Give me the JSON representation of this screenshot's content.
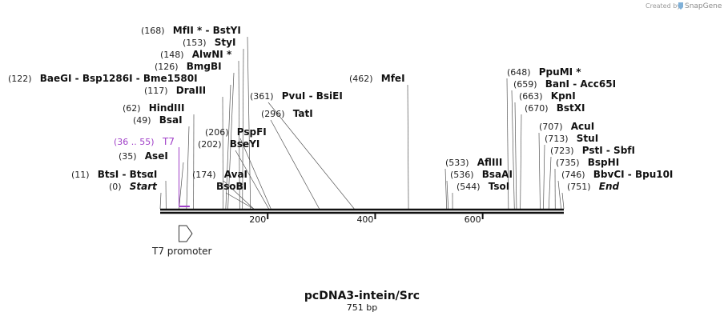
{
  "credit": {
    "prefix": "Created by",
    "brand": "SnapGene"
  },
  "title": "pcDNA3-intein/Src",
  "subtitle": "751 bp",
  "sequence": {
    "length": 751
  },
  "ticks": [
    200,
    400,
    600
  ],
  "feature": {
    "name": "T7 promoter",
    "start": 36,
    "end": 55
  },
  "highlight": {
    "range": "(36 .. 55)",
    "name": "T7",
    "color": "#a040c8"
  },
  "sites": [
    {
      "num": "(168)",
      "pos": 168,
      "parts": [
        "MfII",
        "*",
        " - ",
        "BstYI"
      ]
    },
    {
      "num": "(153)",
      "pos": 153,
      "parts": [
        "StyI"
      ]
    },
    {
      "num": "(148)",
      "pos": 148,
      "parts": [
        "AlwNI",
        "*"
      ]
    },
    {
      "num": "(126)",
      "pos": 126,
      "parts": [
        "BmgBI"
      ]
    },
    {
      "num": "(122)",
      "pos": 122,
      "parts": [
        "BaeGI",
        " - ",
        "Bsp1286I",
        " - ",
        "Bme1580I"
      ]
    },
    {
      "num": "(117)",
      "pos": 117,
      "parts": [
        "DraIII"
      ]
    },
    {
      "num": "(62)",
      "pos": 62,
      "parts": [
        "HindIII"
      ]
    },
    {
      "num": "(49)",
      "pos": 49,
      "parts": [
        "BsaI"
      ]
    },
    {
      "num": "(35)",
      "pos": 35,
      "parts": [
        "AseI"
      ]
    },
    {
      "num": "(11)",
      "pos": 11,
      "parts": [
        "BtsI",
        " - ",
        "BtsαI"
      ]
    },
    {
      "num": "(0)",
      "pos": 0,
      "parts": [
        "Start"
      ]
    },
    {
      "num": "(206)",
      "pos": 206,
      "parts": [
        "PspFI"
      ]
    },
    {
      "num": "(202)",
      "pos": 202,
      "parts": [
        "BseYI"
      ]
    },
    {
      "num": "(174)",
      "pos": 174,
      "parts": [
        "AvaI"
      ]
    },
    {
      "num": "",
      "pos": 174,
      "parts": [
        "BsoBI"
      ]
    },
    {
      "num": "(361)",
      "pos": 361,
      "parts": [
        "PvuI",
        " - ",
        "BsiEI"
      ]
    },
    {
      "num": "(296)",
      "pos": 296,
      "parts": [
        "TatI"
      ]
    },
    {
      "num": "(462)",
      "pos": 462,
      "parts": [
        "MfeI"
      ]
    },
    {
      "num": "(533)",
      "pos": 533,
      "parts": [
        "AflIII"
      ]
    },
    {
      "num": "(536)",
      "pos": 536,
      "parts": [
        "BsaAI"
      ]
    },
    {
      "num": "(544)",
      "pos": 544,
      "parts": [
        "TsoI"
      ]
    },
    {
      "num": "(648)",
      "pos": 648,
      "parts": [
        "PpuMI",
        "*"
      ]
    },
    {
      "num": "(659)",
      "pos": 659,
      "parts": [
        "BanI",
        " - ",
        "Acc65I"
      ]
    },
    {
      "num": "(663)",
      "pos": 663,
      "parts": [
        "KpnI"
      ]
    },
    {
      "num": "(670)",
      "pos": 670,
      "parts": [
        "BstXI"
      ]
    },
    {
      "num": "(707)",
      "pos": 707,
      "parts": [
        "AcuI"
      ]
    },
    {
      "num": "(713)",
      "pos": 713,
      "parts": [
        "StuI"
      ]
    },
    {
      "num": "(723)",
      "pos": 723,
      "parts": [
        "PstI",
        " - ",
        "SbfI"
      ]
    },
    {
      "num": "(735)",
      "pos": 735,
      "parts": [
        "BspHI"
      ]
    },
    {
      "num": "(746)",
      "pos": 746,
      "parts": [
        "BbvCI",
        " - ",
        "Bpu10I"
      ]
    },
    {
      "num": "(751)",
      "pos": 751,
      "parts": [
        "End"
      ]
    }
  ]
}
